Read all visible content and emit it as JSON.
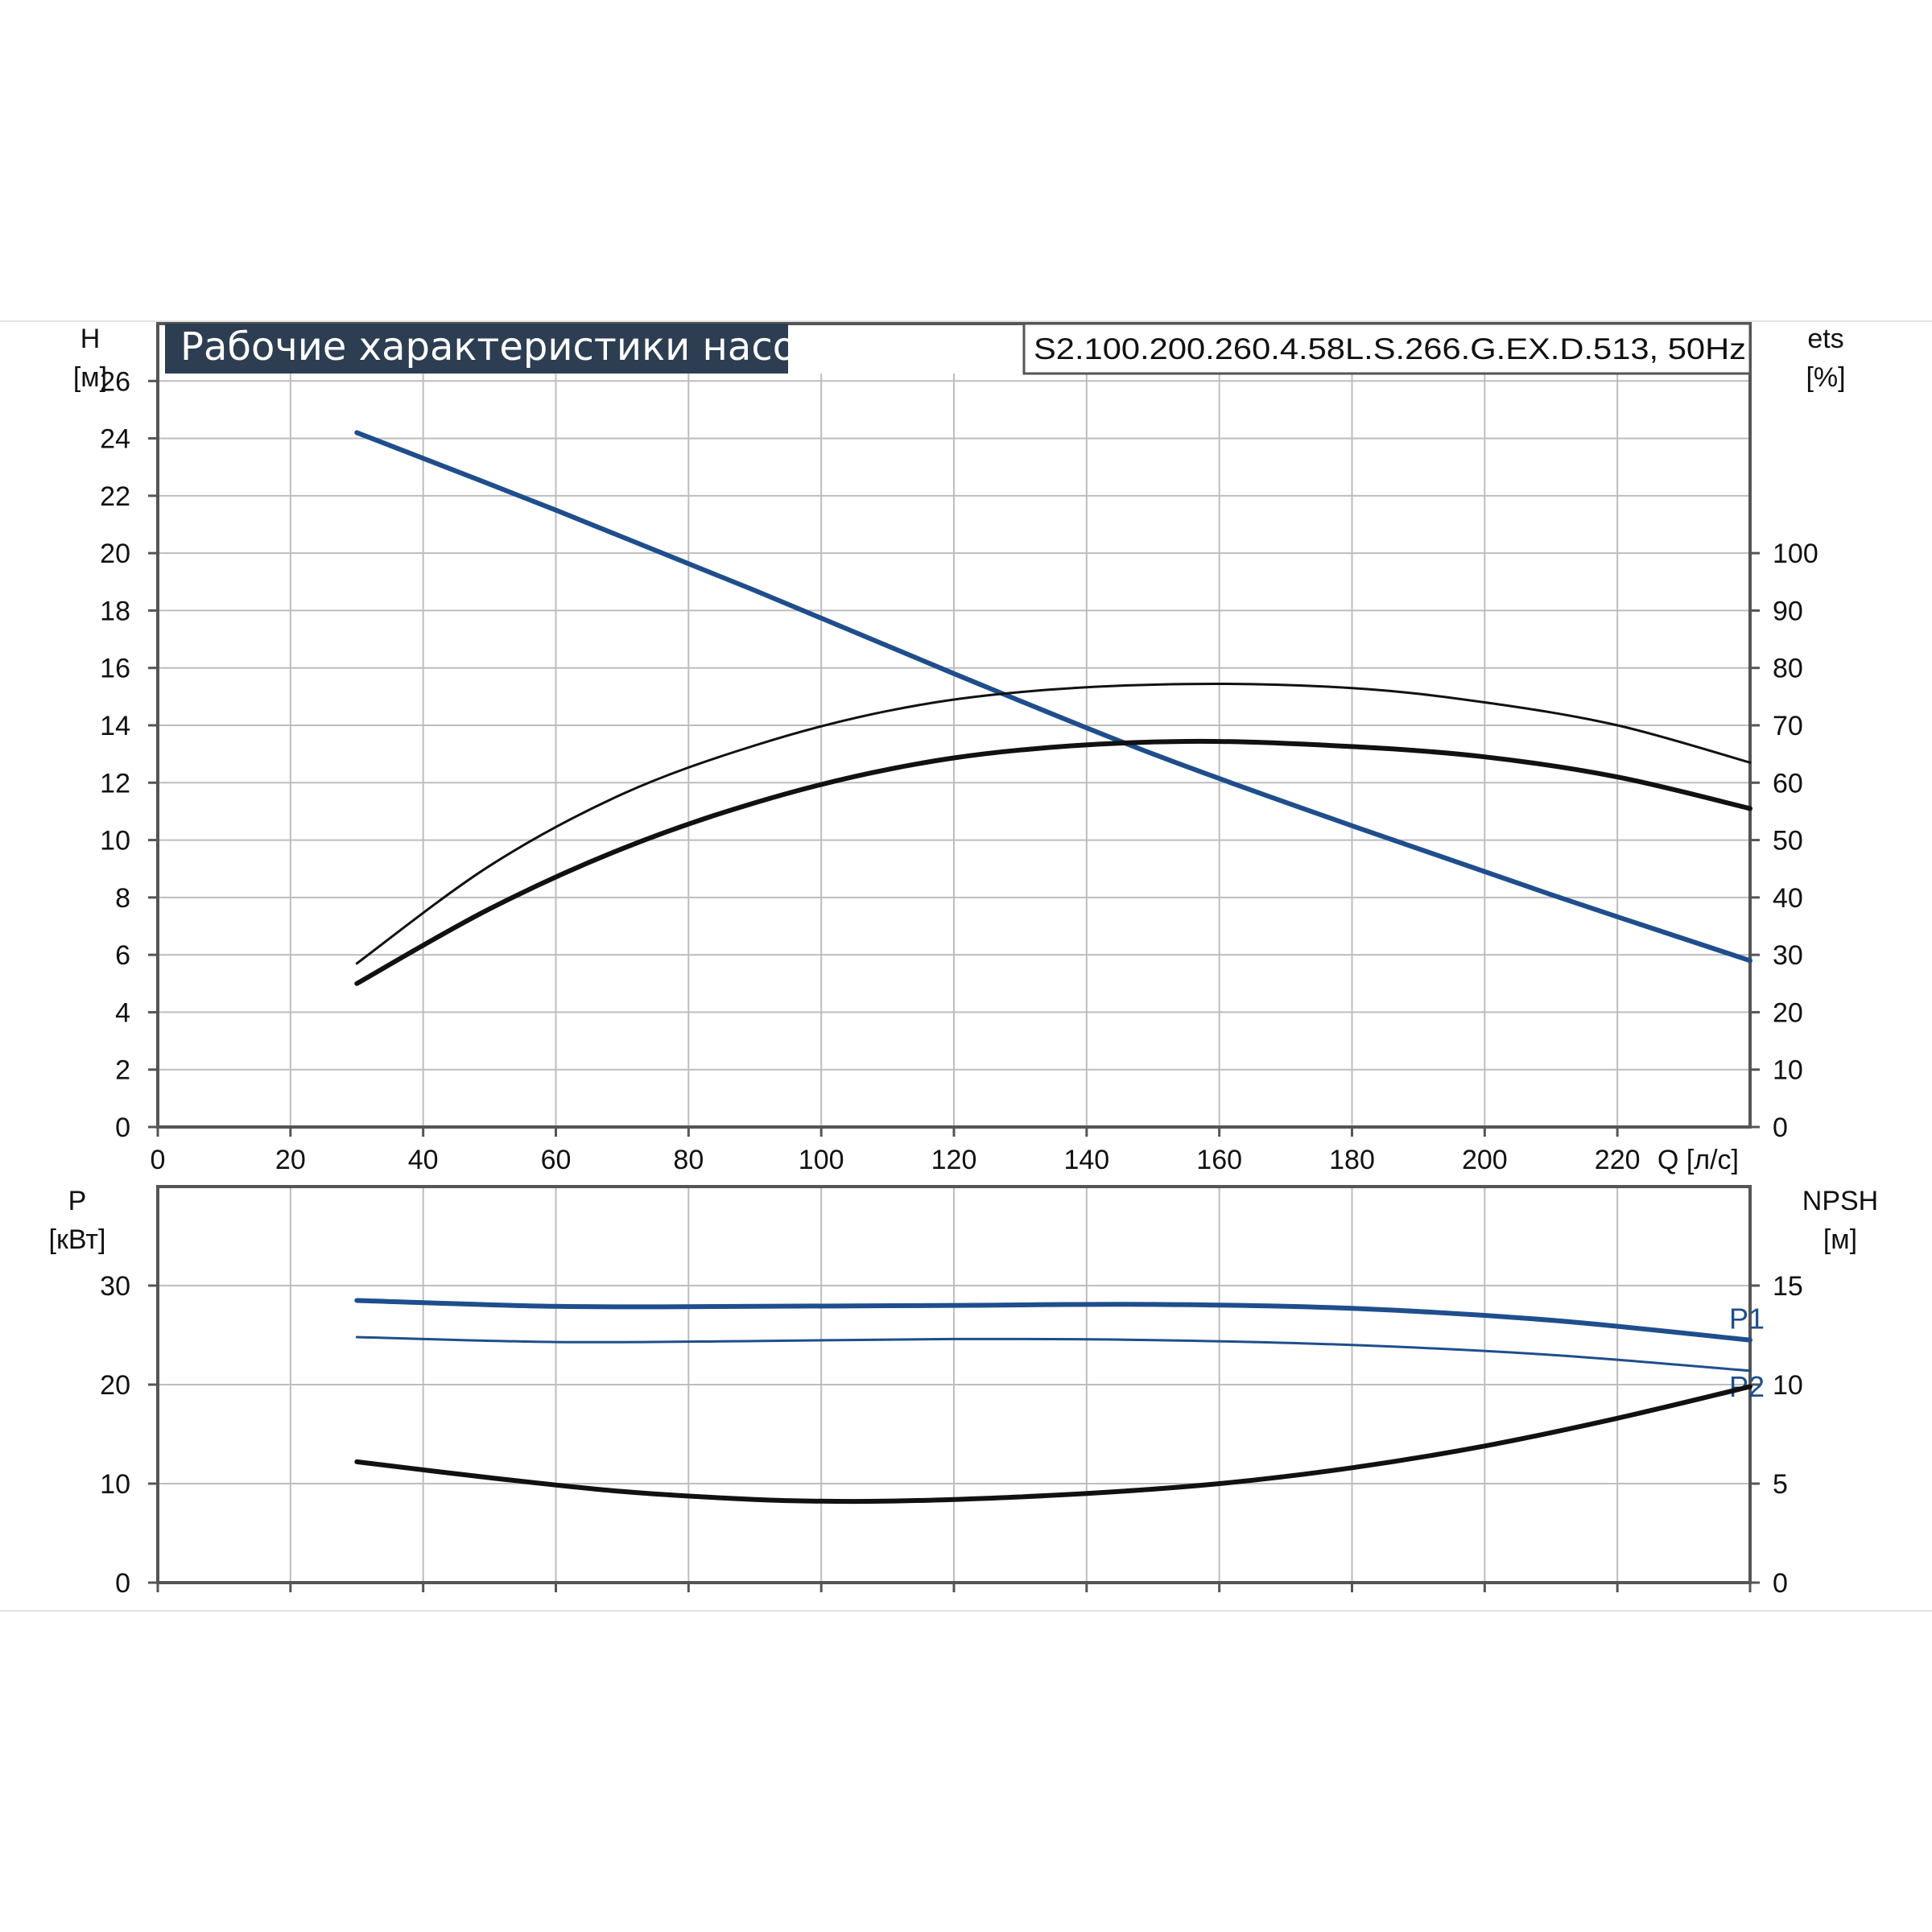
{
  "chart_data": [
    {
      "type": "line",
      "title": "Рабочие характеристики насоса",
      "subtitle": "S2.100.200.260.4.58L.S.266.G.EX.D.513, 50Hz",
      "ylabel": "H",
      "yunit": "[м]",
      "y2label": "ets",
      "y2unit": "[%]",
      "xlabel": "Q [л/с]",
      "xlim": [
        0,
        240
      ],
      "ylim": [
        0,
        28
      ],
      "y2lim": [
        0,
        140
      ],
      "grid": true,
      "x_ticks": [
        "0",
        "20",
        "40",
        "60",
        "80",
        "100",
        "120",
        "140",
        "160",
        "180",
        "200",
        "220"
      ],
      "y_ticks": [
        "0",
        "2",
        "4",
        "6",
        "8",
        "10",
        "12",
        "14",
        "16",
        "18",
        "20",
        "22",
        "24",
        "26"
      ],
      "y2_ticks": [
        "0",
        "10",
        "20",
        "30",
        "40",
        "50",
        "60",
        "70",
        "80",
        "90",
        "100"
      ],
      "series": [
        {
          "axis": "left",
          "color": "#1f4e8c",
          "width": 6,
          "x": [
            30,
            60,
            90,
            120,
            150,
            180,
            210,
            240
          ],
          "y": [
            24.2,
            21.5,
            18.7,
            15.8,
            13.0,
            10.5,
            8.1,
            5.8
          ]
        },
        {
          "axis": "right",
          "color": "#111111",
          "width": 3,
          "x": [
            30,
            50,
            70,
            90,
            110,
            130,
            155,
            180,
            200,
            220,
            240
          ],
          "y": [
            28.5,
            45.5,
            58,
            66.5,
            72.5,
            75.8,
            77.2,
            76.5,
            74,
            70,
            63.5
          ]
        },
        {
          "axis": "right",
          "color": "#111111",
          "width": 6,
          "x": [
            30,
            50,
            70,
            90,
            110,
            130,
            155,
            180,
            200,
            220,
            240
          ],
          "y": [
            25,
            38,
            48.5,
            56.5,
            62.3,
            65.7,
            67.2,
            66.3,
            64.5,
            61,
            55.5
          ]
        }
      ]
    },
    {
      "type": "line",
      "ylabel": "P",
      "yunit": "[кВт]",
      "y2label": "NPSH",
      "y2unit": "[м]",
      "xlim": [
        0,
        240
      ],
      "ylim": [
        0,
        40
      ],
      "y2lim": [
        0,
        20
      ],
      "grid": true,
      "y_ticks": [
        "0",
        "10",
        "20",
        "30"
      ],
      "y2_ticks": [
        "0",
        "5",
        "10",
        "15"
      ],
      "series": [
        {
          "name": "P1",
          "axis": "left",
          "color": "#1f4e8c",
          "width": 6,
          "x": [
            30,
            60,
            90,
            120,
            150,
            180,
            210,
            240
          ],
          "y": [
            28.5,
            27.9,
            27.9,
            28.0,
            28.1,
            27.7,
            26.5,
            24.5
          ]
        },
        {
          "name": "P2",
          "axis": "left",
          "color": "#1f4e8c",
          "width": 3,
          "x": [
            30,
            60,
            90,
            120,
            150,
            180,
            210,
            240
          ],
          "y": [
            24.8,
            24.3,
            24.4,
            24.6,
            24.5,
            24.0,
            23.0,
            21.4
          ]
        },
        {
          "axis": "right",
          "color": "#111111",
          "width": 6,
          "x": [
            30,
            50,
            70,
            90,
            105,
            120,
            140,
            160,
            180,
            200,
            220,
            240
          ],
          "y": [
            6.1,
            5.3,
            4.6,
            4.2,
            4.1,
            4.2,
            4.5,
            5.0,
            5.8,
            6.9,
            8.3,
            9.9
          ]
        }
      ]
    }
  ]
}
